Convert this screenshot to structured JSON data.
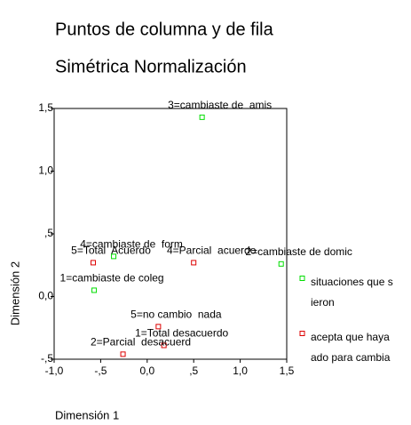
{
  "chart_data": {
    "type": "scatter",
    "title": "Puntos de columna y de fila",
    "subtitle": "Simétrica Normalización",
    "xlabel": "Dimensión 1",
    "ylabel": "Dimensión 2",
    "xlim": [
      -1,
      1.5
    ],
    "ylim": [
      -0.5,
      1.5
    ],
    "xticks": [
      {
        "value": -1,
        "label": "-1,0"
      },
      {
        "value": -0.5,
        "label": "-,5"
      },
      {
        "value": 0,
        "label": "0,0"
      },
      {
        "value": 0.5,
        "label": ",5"
      },
      {
        "value": 1,
        "label": "1,0"
      },
      {
        "value": 1.5,
        "label": "1,5"
      }
    ],
    "yticks": [
      {
        "value": -0.5,
        "label": "-,5"
      },
      {
        "value": 0,
        "label": "0,0"
      },
      {
        "value": 0.5,
        "label": ",5"
      },
      {
        "value": 1,
        "label": "1,0"
      },
      {
        "value": 1.5,
        "label": "1,5"
      }
    ],
    "grid": false,
    "series": [
      {
        "name": [
          "situaciones que s",
          "ieron"
        ],
        "color": "#00dd00",
        "labels": [
          "3=cambiaste de  amis",
          "2=cambiaste de domic",
          "4=cambiaste de  form",
          "1=cambiaste de coleg"
        ],
        "x": [
          0.59,
          1.44,
          -0.36,
          -0.57
        ],
        "values": [
          1.43,
          0.26,
          0.32,
          0.05
        ]
      },
      {
        "name": [
          "acepta que haya",
          "ado para cambia"
        ],
        "color": "#dd0000",
        "labels": [
          "5=Total  Acuerdo",
          "4=Parcial  acuerdo",
          "5=no cambio  nada",
          "1=Total desacuerdo",
          "2=Parcial  desacuerd"
        ],
        "x": [
          -0.58,
          0.5,
          0.12,
          0.18,
          -0.26
        ],
        "values": [
          0.27,
          0.27,
          -0.24,
          -0.39,
          -0.46
        ]
      }
    ]
  }
}
